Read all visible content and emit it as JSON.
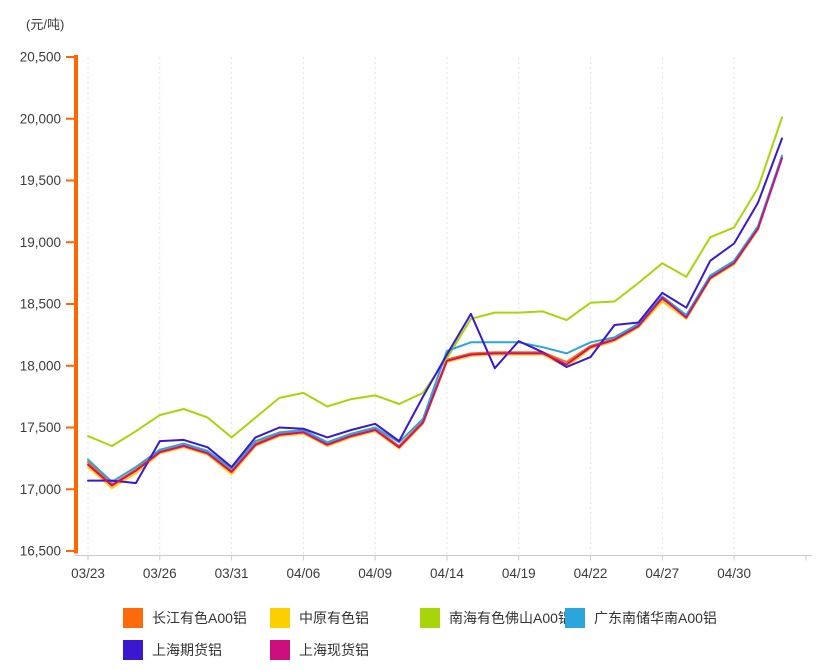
{
  "unit_label": "(元/吨)",
  "chart_data": {
    "type": "line",
    "title": "",
    "ylabel": "(元/吨)",
    "grid": "vertical-dashed",
    "legend_position": "bottom",
    "axis_colors": {
      "y_axis": "#FF6600",
      "x_axis": "#C9C9C9"
    },
    "y_ticks": {
      "min": 16500,
      "max": 20500,
      "step": 500,
      "labels": [
        "16,500",
        "17,000",
        "17,500",
        "18,000",
        "18,500",
        "19,000",
        "19,500",
        "20,000",
        "20,500"
      ]
    },
    "x_ticks": {
      "labels": [
        "03/23",
        "03/26",
        "03/31",
        "04/06",
        "04/09",
        "04/14",
        "04/19",
        "04/22",
        "04/27",
        "04/30"
      ],
      "indices": [
        0,
        3,
        6,
        9,
        12,
        15,
        18,
        21,
        24,
        27
      ]
    },
    "n_points": 30,
    "series": [
      {
        "key": "changjiang-a00",
        "name": "长江有色A00铝",
        "color": "#FC6A0B",
        "values": [
          17220,
          17040,
          17160,
          17310,
          17360,
          17300,
          17150,
          17370,
          17450,
          17470,
          17370,
          17440,
          17490,
          17350,
          17550,
          18050,
          18100,
          18110,
          18110,
          18110,
          18030,
          18160,
          18220,
          18330,
          18540,
          18400,
          18720,
          18840,
          19120,
          19690
        ]
      },
      {
        "key": "zhongyuan",
        "name": "中原有色铝",
        "color": "#FCCF00",
        "values": [
          17180,
          17010,
          17130,
          17290,
          17340,
          17280,
          17120,
          17350,
          17430,
          17450,
          17350,
          17420,
          17470,
          17330,
          17530,
          18030,
          18080,
          18090,
          18090,
          18090,
          17990,
          18140,
          18200,
          18310,
          18520,
          18380,
          18700,
          18820,
          19100,
          19700
        ]
      },
      {
        "key": "nanhai-foshan-a00",
        "name": "南海有色佛山A00铝",
        "color": "#A8D50A",
        "values": [
          17430,
          17350,
          17470,
          17600,
          17650,
          17580,
          17420,
          17580,
          17740,
          17780,
          17670,
          17730,
          17760,
          17690,
          17780,
          18060,
          18380,
          18430,
          18430,
          18440,
          18370,
          18510,
          18520,
          18670,
          18830,
          18720,
          19040,
          19120,
          19440,
          20010
        ]
      },
      {
        "key": "guangdong-nanchu-a00",
        "name": "广东南储华南A00铝",
        "color": "#2AA5DD",
        "values": [
          17240,
          17060,
          17180,
          17320,
          17370,
          17310,
          17170,
          17390,
          17460,
          17480,
          17380,
          17450,
          17500,
          17380,
          17570,
          18120,
          18190,
          18190,
          18190,
          18150,
          18100,
          18190,
          18230,
          18340,
          18560,
          18410,
          18730,
          18850,
          19130,
          19700
        ]
      },
      {
        "key": "shanghai-futures",
        "name": "上海期货铝",
        "color": "#3A18CF",
        "values": [
          17070,
          17070,
          17050,
          17390,
          17400,
          17340,
          17180,
          17420,
          17500,
          17490,
          17420,
          17480,
          17530,
          17390,
          17750,
          18090,
          18420,
          17980,
          18200,
          18110,
          17990,
          18070,
          18330,
          18350,
          18590,
          18470,
          18850,
          18990,
          19320,
          19840
        ]
      },
      {
        "key": "shanghai-spot",
        "name": "上海现货铝",
        "color": "#CE0E7E",
        "values": [
          17200,
          17030,
          17150,
          17300,
          17350,
          17290,
          17140,
          17360,
          17440,
          17460,
          17360,
          17430,
          17480,
          17340,
          17540,
          18040,
          18090,
          18100,
          18100,
          18100,
          18010,
          18150,
          18210,
          18320,
          18550,
          18390,
          18710,
          18830,
          19110,
          19680
        ]
      }
    ]
  }
}
